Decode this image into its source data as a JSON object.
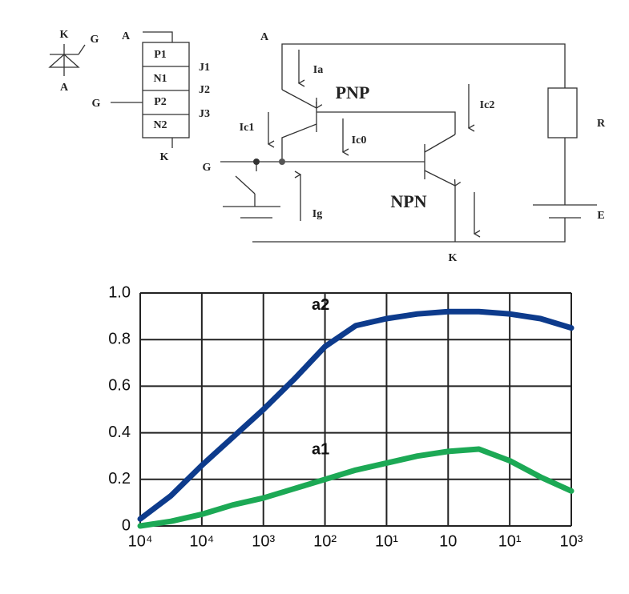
{
  "symbol": {
    "cathode": "K",
    "gate": "G",
    "anode": "A"
  },
  "layers": {
    "anode": "A",
    "layers": [
      "P1",
      "N1",
      "P2",
      "N2"
    ],
    "junctions": [
      "J1",
      "J2",
      "J3"
    ],
    "gate": "G",
    "cathode": "K"
  },
  "circuit": {
    "anode": "A",
    "ia": "Ia",
    "pnp": "PNP",
    "ic2": "Ic2",
    "ic1": "Ic1",
    "ic0": "Ic0",
    "gate": "G",
    "ig": "Ig",
    "npn": "NPN",
    "resistor": "R",
    "source": "E",
    "cathode": "K"
  },
  "chart_data": {
    "type": "line",
    "x": [
      0,
      0.5,
      1,
      1.5,
      2,
      2.5,
      3,
      3.5,
      4,
      4.5,
      5,
      5.5,
      6,
      6.5,
      7
    ],
    "series": [
      {
        "name": "a2",
        "color": "#0d3b8c",
        "values": [
          0.03,
          0.13,
          0.26,
          0.38,
          0.5,
          0.63,
          0.77,
          0.86,
          0.89,
          0.91,
          0.92,
          0.92,
          0.91,
          0.89,
          0.85
        ]
      },
      {
        "name": "a1",
        "color": "#1ca955",
        "values": [
          0,
          0.02,
          0.05,
          0.09,
          0.12,
          0.16,
          0.2,
          0.24,
          0.27,
          0.3,
          0.32,
          0.33,
          0.28,
          0.21,
          0.15
        ]
      }
    ],
    "xlim": [
      0,
      7
    ],
    "xticks": [
      {
        "value": 0,
        "label": "10⁴"
      },
      {
        "value": 1,
        "label": "10⁴"
      },
      {
        "value": 2,
        "label": "10³"
      },
      {
        "value": 3,
        "label": "10²"
      },
      {
        "value": 4,
        "label": "10¹"
      },
      {
        "value": 5,
        "label": "10"
      },
      {
        "value": 6,
        "label": "10¹"
      },
      {
        "value": 7,
        "label": "10³"
      }
    ],
    "ylim": [
      0,
      1
    ],
    "yticks": [
      0,
      0.2,
      0.4,
      0.6,
      0.8,
      {
        "value": 1,
        "label": "1.0"
      }
    ],
    "grid": true
  }
}
